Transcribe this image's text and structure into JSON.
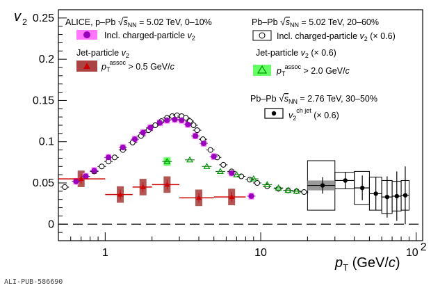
{
  "chart_data": {
    "type": "scatter",
    "title": "",
    "xlabel": "p_T (GeV/c)",
    "ylabel": "v_2",
    "xscale": "log",
    "xlim": [
      0.5,
      110
    ],
    "ylim": [
      -0.02,
      0.26
    ],
    "x_tick_labels": [
      "1",
      "10",
      "10^2"
    ],
    "y_tick_labels": [
      "0",
      "0.05",
      "0.1",
      "0.15",
      "0.2",
      "0.25"
    ],
    "grid": false,
    "legend": {
      "alice_header": "ALICE, p–Pb √s_NN = 5.02 TeV, 0–10%",
      "pbpb_header_502": "Pb–Pb √s_NN = 5.02 TeV, 20–60%",
      "incl_label": "Incl. charged-particle v_2",
      "pbpb_incl_label": "Incl. charged-particle v_2 (× 0.6)",
      "jet_header": "Jet-particle v_2",
      "jet_label": "p_T^assoc > 0.5 GeV/c",
      "pbpb_jet_header": "Jet-particle v_2 (× 0.6)",
      "pbpb_jet_label": "p_T^assoc > 2.0 GeV/c",
      "pbpb_header_276": "Pb–Pb √s_NN = 2.76 TeV, 30–50%",
      "chjet_label": "v_2^ch jet (× 0.6)"
    },
    "series": [
      {
        "name": "Incl. charged-particle v_2",
        "color": "#9900bb",
        "syst_color": "#ff77ff",
        "x": [
          0.65,
          0.75,
          0.85,
          1.05,
          1.3,
          1.55,
          1.75,
          1.95,
          2.25,
          2.5,
          2.8,
          3.1,
          3.4,
          3.8,
          4.3,
          5.0,
          6.5,
          8.7
        ],
        "y": [
          0.052,
          0.058,
          0.065,
          0.081,
          0.093,
          0.103,
          0.111,
          0.117,
          0.123,
          0.126,
          0.127,
          0.126,
          0.121,
          0.107,
          0.098,
          0.082,
          0.062,
          0.034
        ]
      },
      {
        "name": "Incl. charged-particle v_2 (× 0.6)",
        "color": "#000000",
        "x": [
          0.55,
          0.65,
          0.75,
          0.85,
          0.95,
          1.05,
          1.15,
          1.3,
          1.5,
          1.7,
          1.9,
          2.1,
          2.3,
          2.5,
          2.7,
          2.9,
          3.1,
          3.3,
          3.5,
          3.7,
          3.9,
          4.25,
          4.75,
          5.25,
          5.75,
          6.5,
          7.5,
          8.5,
          9.5,
          11,
          13,
          15,
          17,
          19
        ],
        "y": [
          0.045,
          0.052,
          0.058,
          0.064,
          0.07,
          0.076,
          0.081,
          0.09,
          0.099,
          0.107,
          0.114,
          0.12,
          0.125,
          0.129,
          0.131,
          0.132,
          0.131,
          0.129,
          0.125,
          0.12,
          0.114,
          0.103,
          0.09,
          0.081,
          0.072,
          0.064,
          0.058,
          0.054,
          0.05,
          0.046,
          0.043,
          0.041,
          0.04,
          0.039
        ]
      },
      {
        "name": "Jet-particle v_2",
        "color": "#cc0000",
        "syst_color": "#aa4444",
        "x": [
          0.7,
          1.25,
          1.75,
          2.5,
          4.0,
          6.5
        ],
        "x_err": [
          [
            0.5,
            1.0
          ],
          [
            1.0,
            1.5
          ],
          [
            1.5,
            2.0
          ],
          [
            2.0,
            3.0
          ],
          [
            3.0,
            5.0
          ],
          [
            5.0,
            8.0
          ]
        ],
        "y": [
          0.055,
          0.036,
          0.045,
          0.048,
          0.032,
          0.033
        ]
      },
      {
        "name": "Jet-particle v_2 (× 0.6)",
        "color": "#009900",
        "syst_color": "#66ff66",
        "x": [
          2.5,
          3.5,
          4.5,
          5.5,
          7.0,
          9.0,
          11.0,
          13.0,
          15.0,
          17.0
        ],
        "y": [
          0.076,
          0.078,
          0.07,
          0.064,
          0.06,
          0.055,
          0.048,
          0.044,
          0.041,
          0.04
        ]
      },
      {
        "name": "v_2^ch jet (× 0.6)",
        "color": "#000000",
        "x": [
          25,
          35,
          45,
          55,
          65,
          75,
          85
        ],
        "x_err": [
          [
            20,
            30
          ],
          [
            30,
            40
          ],
          [
            40,
            50
          ],
          [
            50,
            60
          ],
          [
            60,
            70
          ],
          [
            70,
            80
          ],
          [
            80,
            90
          ]
        ],
        "y": [
          0.047,
          0.053,
          0.044,
          0.037,
          0.033,
          0.034,
          0.035
        ],
        "y_err_stat": [
          0.01,
          0.01,
          0.015,
          0.02,
          0.025,
          0.03,
          0.035
        ],
        "y_err_syst": [
          0.03,
          0.01,
          0.02,
          0.02,
          0.02,
          0.018,
          0.018
        ]
      }
    ],
    "reference_line": {
      "y": 0,
      "style": "dashed"
    }
  },
  "footer": "ALI-PUB-586690"
}
